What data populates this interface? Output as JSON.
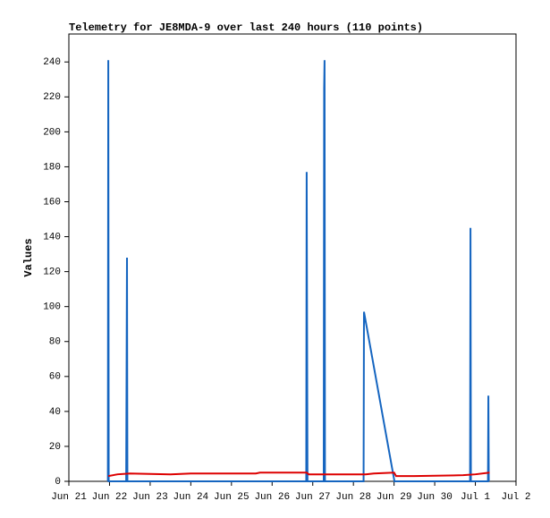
{
  "chart_data": {
    "type": "line",
    "title": "Telemetry for JE8MDA-9 over last 240 hours (110 points)",
    "y_label": "Values",
    "xlim": [
      0,
      11
    ],
    "xticks": [
      {
        "value": 0,
        "label": "Jun 21"
      },
      {
        "value": 1,
        "label": "Jun 22"
      },
      {
        "value": 2,
        "label": "Jun 23"
      },
      {
        "value": 3,
        "label": "Jun 24"
      },
      {
        "value": 4,
        "label": "Jun 25"
      },
      {
        "value": 5,
        "label": "Jun 26"
      },
      {
        "value": 6,
        "label": "Jun 27"
      },
      {
        "value": 7,
        "label": "Jun 28"
      },
      {
        "value": 8,
        "label": "Jun 29"
      },
      {
        "value": 9,
        "label": "Jun 30"
      },
      {
        "value": 10,
        "label": "Jul 1"
      },
      {
        "value": 11,
        "label": "Jul 2"
      }
    ],
    "ylim": [
      0,
      256
    ],
    "yticks": [
      0,
      20,
      40,
      60,
      80,
      100,
      120,
      140,
      160,
      180,
      200,
      220,
      240
    ],
    "grid": false,
    "series": [
      {
        "color": "#1565c0",
        "x": [
          0.96,
          0.97,
          0.98,
          1.41,
          1.42,
          1.43,
          1.44,
          5.84,
          5.85,
          5.86,
          5.87,
          6.27,
          6.28,
          6.29,
          6.3,
          7.25,
          7.26,
          8.01,
          9.87,
          9.88,
          9.89,
          10.31,
          10.32,
          10.33
        ],
        "values": [
          0,
          241,
          0,
          0,
          64,
          128,
          0,
          0,
          177,
          88,
          0,
          0,
          225,
          241,
          0,
          0,
          97,
          0,
          0,
          145,
          0,
          0,
          49,
          0
        ]
      },
      {
        "color": "#dd0000",
        "x": [
          0.97,
          1.2,
          1.5,
          2.5,
          3.0,
          4.6,
          4.7,
          5.85,
          5.9,
          7.3,
          7.5,
          8.0,
          8.05,
          8.5,
          9.7,
          10.0,
          10.35
        ],
        "values": [
          3,
          4,
          4.5,
          4,
          4.5,
          4.5,
          5,
          5,
          4,
          4,
          4.5,
          5,
          3,
          3,
          3.5,
          4,
          5
        ]
      }
    ]
  }
}
